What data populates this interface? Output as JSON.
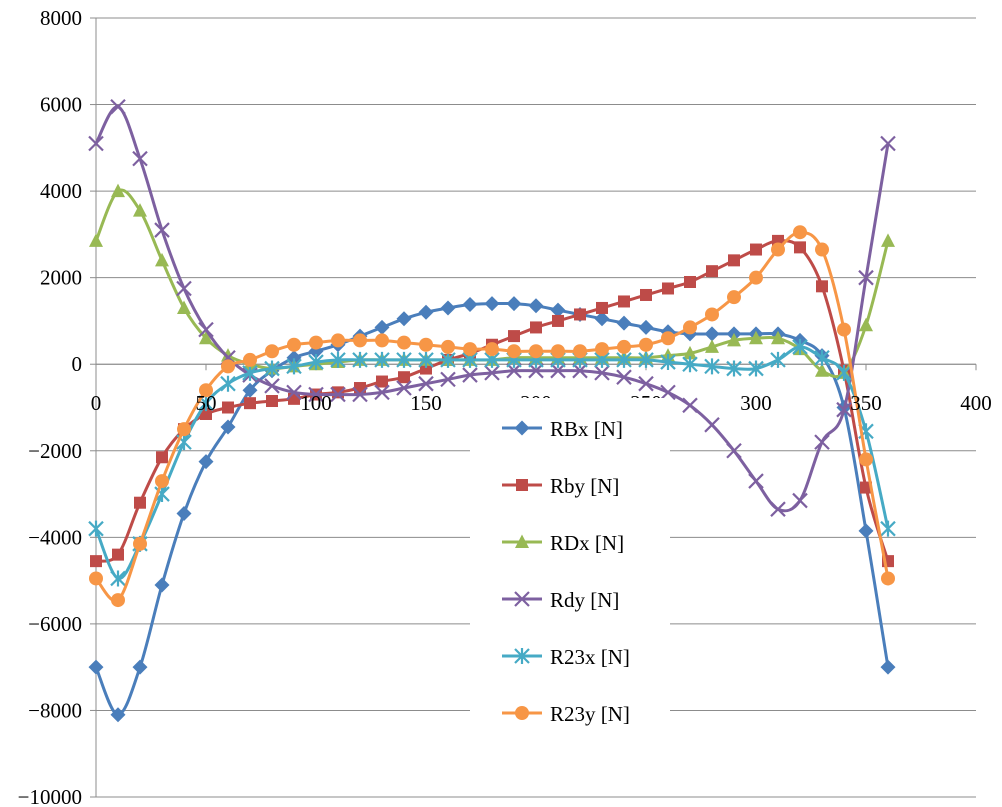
{
  "chart_data": {
    "type": "line",
    "title": "",
    "xlabel": "",
    "ylabel": "",
    "xlim": [
      0,
      400
    ],
    "ylim": [
      -10000,
      8000
    ],
    "x_ticks": [
      0,
      50,
      100,
      150,
      200,
      250,
      300,
      350,
      400
    ],
    "y_ticks": [
      8000,
      6000,
      4000,
      2000,
      0,
      -2000,
      -4000,
      -6000,
      -8000,
      -10000
    ],
    "x_tick_labels": [
      "0",
      "50",
      "100",
      "150",
      "200",
      "250",
      "300",
      "350",
      "400"
    ],
    "y_tick_labels": [
      "8000",
      "6000",
      "4000",
      "2000",
      "0",
      "−2000",
      "−4000",
      "−6000",
      "−8000",
      "−10000"
    ],
    "grid": "horizontal",
    "legend_placement": "center",
    "x": [
      0,
      10,
      20,
      30,
      40,
      50,
      60,
      70,
      80,
      90,
      100,
      110,
      120,
      130,
      140,
      150,
      160,
      170,
      180,
      190,
      200,
      210,
      220,
      230,
      240,
      250,
      260,
      270,
      280,
      290,
      300,
      310,
      320,
      330,
      340,
      350,
      360
    ],
    "series": [
      {
        "name": "RBx [N]",
        "color": "#4a7ebb",
        "marker": "diamond",
        "values": [
          -7000,
          -8100,
          -7000,
          -5100,
          -3450,
          -2250,
          -1450,
          -600,
          -150,
          150,
          300,
          450,
          650,
          850,
          1050,
          1200,
          1300,
          1380,
          1400,
          1400,
          1350,
          1250,
          1150,
          1050,
          950,
          850,
          750,
          700,
          700,
          700,
          700,
          700,
          550,
          200,
          -1000,
          -3850,
          -7000
        ]
      },
      {
        "name": "Rby [N]",
        "color": "#be4b48",
        "marker": "square",
        "values": [
          -4550,
          -4400,
          -3200,
          -2150,
          -1500,
          -1150,
          -1000,
          -900,
          -850,
          -800,
          -700,
          -650,
          -550,
          -400,
          -300,
          -100,
          100,
          250,
          450,
          650,
          850,
          1000,
          1150,
          1300,
          1450,
          1600,
          1750,
          1900,
          2150,
          2400,
          2650,
          2850,
          2700,
          1800,
          -150,
          -2850,
          -4550
        ]
      },
      {
        "name": "RDx [N]",
        "color": "#98b954",
        "marker": "triangle",
        "values": [
          2850,
          4000,
          3550,
          2400,
          1300,
          600,
          200,
          0,
          -100,
          -50,
          0,
          50,
          100,
          100,
          100,
          100,
          100,
          100,
          100,
          150,
          150,
          150,
          150,
          150,
          150,
          150,
          200,
          250,
          400,
          550,
          600,
          600,
          350,
          -150,
          -200,
          900,
          2850
        ]
      },
      {
        "name": "Rdy [N]",
        "color": "#7d60a0",
        "marker": "x",
        "values": [
          5100,
          5950,
          4750,
          3100,
          1750,
          800,
          150,
          -250,
          -500,
          -650,
          -700,
          -700,
          -700,
          -650,
          -550,
          -450,
          -350,
          -250,
          -200,
          -150,
          -150,
          -150,
          -150,
          -200,
          -300,
          -450,
          -650,
          -950,
          -1400,
          -2000,
          -2700,
          -3350,
          -3150,
          -1800,
          -1050,
          2000,
          5100
        ]
      },
      {
        "name": "R23x [N]",
        "color": "#46aac5",
        "marker": "asterisk",
        "values": [
          -3800,
          -4950,
          -4150,
          -3000,
          -1800,
          -900,
          -450,
          -200,
          -100,
          -50,
          50,
          100,
          100,
          100,
          100,
          100,
          100,
          100,
          100,
          100,
          100,
          100,
          100,
          100,
          100,
          100,
          50,
          0,
          -50,
          -100,
          -100,
          100,
          400,
          150,
          -200,
          -1550,
          -3800
        ]
      },
      {
        "name": "R23y [N]",
        "color": "#f79646",
        "marker": "circle",
        "values": [
          -4950,
          -5450,
          -4150,
          -2700,
          -1500,
          -600,
          -50,
          100,
          300,
          450,
          500,
          550,
          550,
          550,
          500,
          450,
          400,
          350,
          350,
          300,
          300,
          300,
          300,
          350,
          400,
          450,
          600,
          850,
          1150,
          1550,
          2000,
          2650,
          3050,
          2650,
          800,
          -2200,
          -4950
        ]
      }
    ]
  }
}
